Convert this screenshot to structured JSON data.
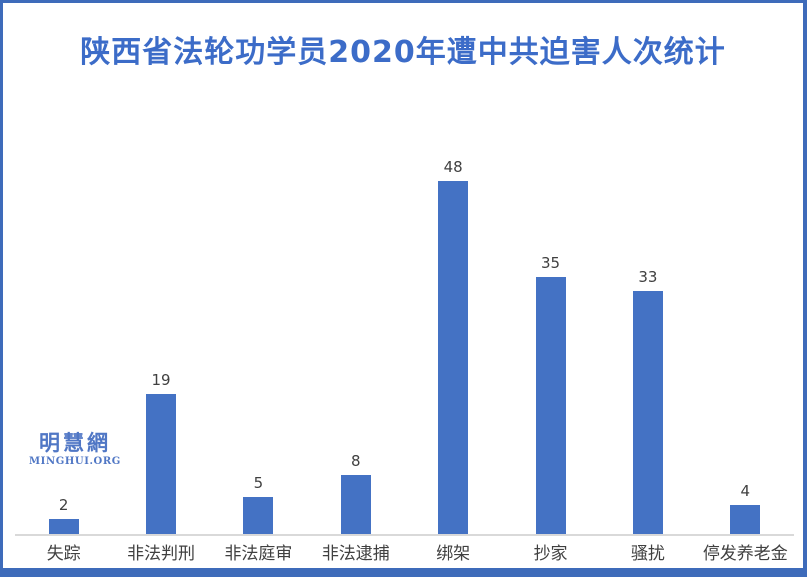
{
  "page": {
    "background": "#ffffff",
    "border_color": "#3E6BBA"
  },
  "watermark": {
    "line1": "明慧網",
    "line2": "MINGHUI.ORG",
    "color": "#5077C5"
  },
  "chart_data": {
    "type": "bar",
    "title": "陕西省法轮功学员2020年遭中共迫害人次统计",
    "title_color": "#3C6CC8",
    "categories": [
      "失踪",
      "非法判刑",
      "非法庭审",
      "非法逮捕",
      "绑架",
      "抄家",
      "骚扰",
      "停发养老金"
    ],
    "values": [
      2,
      19,
      5,
      8,
      48,
      35,
      33,
      4
    ],
    "bar_color": "#4472C4",
    "value_label_color": "#404040",
    "category_label_color": "#404040",
    "axis_line_color": "#D9D9D9",
    "xlabel": "",
    "ylabel": "",
    "ylim": [
      0,
      50
    ],
    "gridlines": false,
    "legend": "none",
    "data_labels": "above-bars",
    "y_axis_visible": false
  }
}
